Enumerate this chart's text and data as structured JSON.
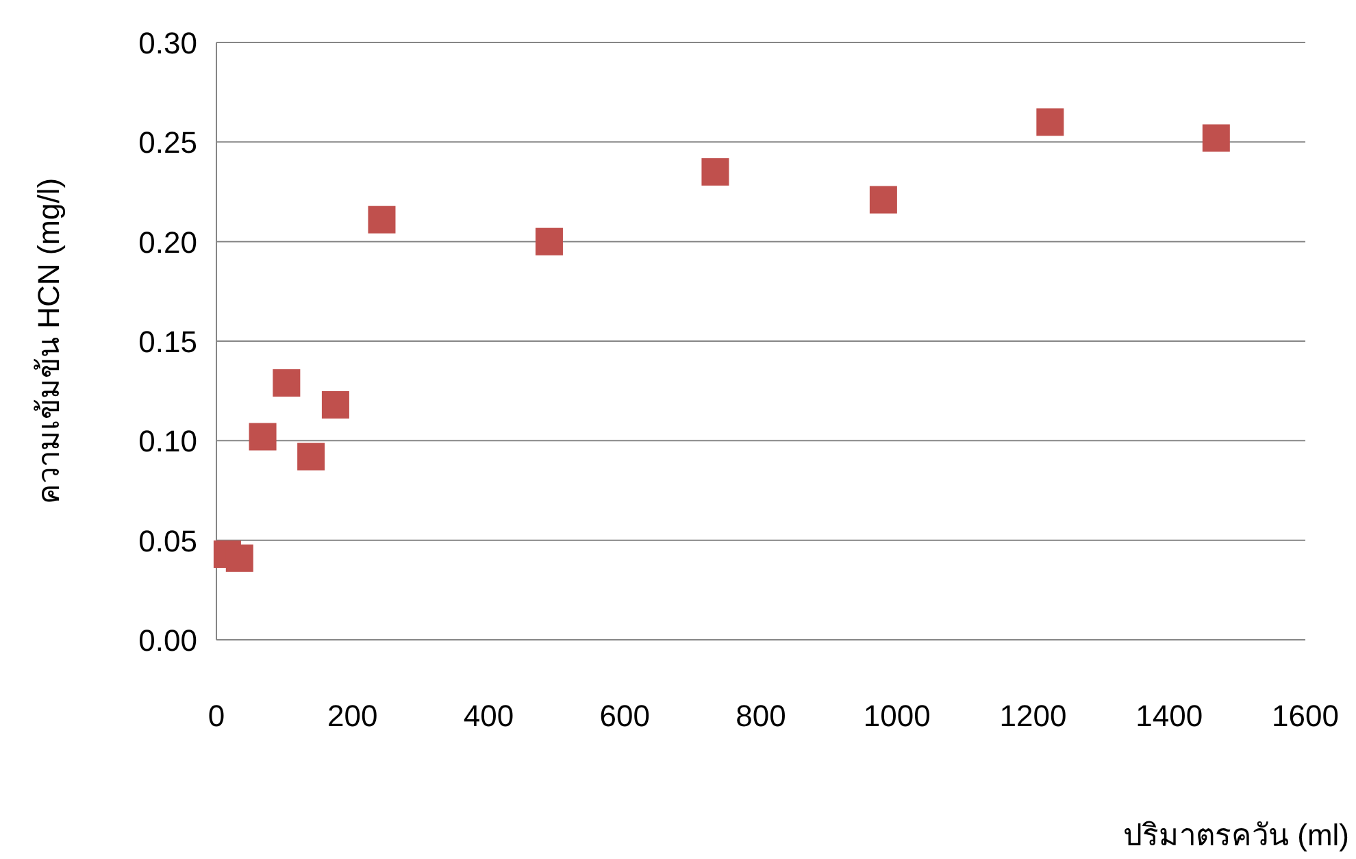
{
  "chart_data": {
    "type": "scatter",
    "xlabel": "ปริมาตรควัน (ml)",
    "ylabel": "ความเข้มข้น HCN (mg/l)",
    "x": [
      16,
      34,
      68,
      103,
      139,
      175,
      243,
      489,
      733,
      980,
      1225,
      1469
    ],
    "series": [
      {
        "color": "#c0504d",
        "values": [
          0.043,
          0.041,
          0.102,
          0.129,
          0.092,
          0.118,
          0.211,
          0.2,
          0.235,
          0.221,
          0.26,
          0.252
        ]
      }
    ],
    "marker": "square",
    "xlim": [
      0,
      1600
    ],
    "ylim": [
      0,
      0.3
    ],
    "xticks": [
      0,
      200,
      400,
      600,
      800,
      1000,
      1200,
      1400,
      1600
    ],
    "yticks": [
      {
        "value": 0,
        "label": "0.00"
      },
      {
        "value": 0.05,
        "label": "0.05"
      },
      {
        "value": 0.1,
        "label": "0.10"
      },
      {
        "value": 0.15,
        "label": "0.15"
      },
      {
        "value": 0.2,
        "label": "0.20"
      },
      {
        "value": 0.25,
        "label": "0.25"
      },
      {
        "value": 0.3,
        "label": "0.30"
      }
    ],
    "grid": "y"
  }
}
